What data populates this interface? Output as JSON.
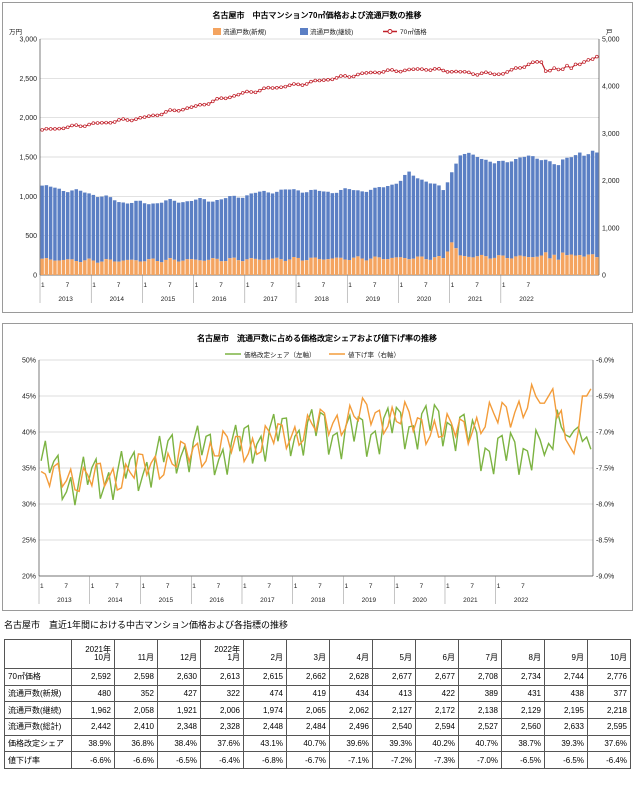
{
  "chart_data": [
    {
      "type": "bar+line",
      "title": "名古屋市　中古マンション70㎡価格および流通戸数の推移",
      "left_unit": "万円",
      "right_unit": "戸",
      "left_ticks": [
        "0",
        "500",
        "1,000",
        "1,500",
        "2,000",
        "2,500",
        "3,000"
      ],
      "right_ticks": [
        "0",
        "1,000",
        "2,000",
        "3,000",
        "4,000",
        "5,000"
      ],
      "legend": [
        "流通戸数(新規)",
        "流通戸数(継続)",
        "70㎡価格"
      ],
      "colors": {
        "new": "#f4a460",
        "continuing": "#5b7fc4",
        "price": "#c0202a"
      },
      "years": [
        "2013",
        "2014",
        "2015",
        "2016",
        "2017",
        "2018",
        "2019",
        "2020",
        "2021",
        "2022"
      ],
      "month_labels": [
        "1",
        "7"
      ],
      "months": 118,
      "price_anchors": [
        [
          0,
          1840
        ],
        [
          6,
          1880
        ],
        [
          12,
          1920
        ],
        [
          18,
          1960
        ],
        [
          24,
          2000
        ],
        [
          30,
          2080
        ],
        [
          36,
          2140
        ],
        [
          42,
          2240
        ],
        [
          48,
          2320
        ],
        [
          54,
          2380
        ],
        [
          60,
          2420
        ],
        [
          66,
          2480
        ],
        [
          72,
          2530
        ],
        [
          78,
          2580
        ],
        [
          84,
          2600
        ],
        [
          90,
          2620
        ],
        [
          96,
          2590
        ],
        [
          102,
          2560
        ],
        [
          108,
          2560
        ],
        [
          114,
          2680
        ],
        [
          120,
          2740
        ],
        [
          126,
          2790
        ],
        [
          130,
          2776
        ]
      ],
      "total_anchors": [
        [
          0,
          1880
        ],
        [
          6,
          1800
        ],
        [
          12,
          1720
        ],
        [
          18,
          1560
        ],
        [
          24,
          1520
        ],
        [
          30,
          1560
        ],
        [
          36,
          1580
        ],
        [
          42,
          1600
        ],
        [
          48,
          1700
        ],
        [
          54,
          1780
        ],
        [
          60,
          1800
        ],
        [
          66,
          1760
        ],
        [
          72,
          1800
        ],
        [
          78,
          1800
        ],
        [
          84,
          2000
        ],
        [
          86,
          2150
        ],
        [
          90,
          2000
        ],
        [
          94,
          1800
        ],
        [
          96,
          2200
        ],
        [
          98,
          2540
        ],
        [
          102,
          2540
        ],
        [
          106,
          2350
        ],
        [
          110,
          2450
        ],
        [
          114,
          2500
        ],
        [
          118,
          2480
        ],
        [
          122,
          2550
        ],
        [
          126,
          2620
        ],
        [
          129,
          2640
        ],
        [
          130,
          2595
        ]
      ],
      "new_anchors": [
        [
          0,
          330
        ],
        [
          12,
          300
        ],
        [
          24,
          310
        ],
        [
          36,
          320
        ],
        [
          48,
          330
        ],
        [
          60,
          340
        ],
        [
          72,
          350
        ],
        [
          84,
          360
        ],
        [
          94,
          360
        ],
        [
          96,
          700
        ],
        [
          98,
          400
        ],
        [
          108,
          380
        ],
        [
          120,
          400
        ],
        [
          130,
          377
        ]
      ]
    },
    {
      "type": "line",
      "title": "名古屋市　流通戸数に占める価格改定シェアおよび値下げ率の推移",
      "left_ticks": [
        "20%",
        "25%",
        "30%",
        "35%",
        "40%",
        "45%",
        "50%"
      ],
      "right_ticks": [
        "-9.0%",
        "-8.5%",
        "-8.0%",
        "-7.5%",
        "-7.0%",
        "-6.5%",
        "-6.0%"
      ],
      "series": [
        {
          "name": "価格改定シェア（左軸）",
          "color": "#7cb342"
        },
        {
          "name": "値下げ率（右軸）",
          "color": "#f39c3a"
        }
      ],
      "share_anchors": [
        [
          0,
          36
        ],
        [
          6,
          33
        ],
        [
          12,
          33.5
        ],
        [
          18,
          34
        ],
        [
          24,
          35
        ],
        [
          30,
          37
        ],
        [
          36,
          38
        ],
        [
          42,
          37
        ],
        [
          48,
          38.5
        ],
        [
          54,
          39.5
        ],
        [
          60,
          40
        ],
        [
          66,
          40.5
        ],
        [
          72,
          39.5
        ],
        [
          78,
          40
        ],
        [
          84,
          41
        ],
        [
          90,
          41
        ],
        [
          96,
          41.5
        ],
        [
          100,
          40
        ],
        [
          104,
          38
        ],
        [
          110,
          37
        ],
        [
          116,
          38
        ],
        [
          122,
          40
        ],
        [
          126,
          39.5
        ],
        [
          130,
          37.6
        ]
      ],
      "cut_anchors": [
        [
          0,
          -7.7
        ],
        [
          6,
          -7.6
        ],
        [
          12,
          -7.65
        ],
        [
          18,
          -7.6
        ],
        [
          24,
          -7.5
        ],
        [
          30,
          -7.4
        ],
        [
          36,
          -7.3
        ],
        [
          42,
          -7.2
        ],
        [
          48,
          -7.2
        ],
        [
          54,
          -7.1
        ],
        [
          60,
          -7.0
        ],
        [
          66,
          -6.9
        ],
        [
          72,
          -6.8
        ],
        [
          78,
          -6.75
        ],
        [
          84,
          -6.8
        ],
        [
          90,
          -6.9
        ],
        [
          96,
          -7.0
        ],
        [
          102,
          -6.9
        ],
        [
          108,
          -6.8
        ],
        [
          114,
          -6.6
        ],
        [
          120,
          -6.5
        ],
        [
          124,
          -6.8
        ],
        [
          127,
          -6.5
        ],
        [
          130,
          -6.4
        ]
      ],
      "years": [
        "2013",
        "2014",
        "2015",
        "2016",
        "2017",
        "2018",
        "2019",
        "2020",
        "2021",
        "2022"
      ]
    }
  ],
  "table": {
    "title": "名古屋市　直近1年間における中古マンション価格および各指標の推移",
    "header_top": [
      "2021年",
      "",
      "",
      "2022年",
      "",
      "",
      "",
      "",
      "",
      "",
      "",
      "",
      ""
    ],
    "header_month": [
      "10月",
      "11月",
      "12月",
      "1月",
      "2月",
      "3月",
      "4月",
      "5月",
      "6月",
      "7月",
      "8月",
      "9月",
      "10月"
    ],
    "rows": [
      {
        "label": "70㎡価格",
        "values": [
          "2,592",
          "2,598",
          "2,630",
          "2,613",
          "2,615",
          "2,662",
          "2,628",
          "2,677",
          "2,677",
          "2,708",
          "2,734",
          "2,744",
          "2,776"
        ]
      },
      {
        "label": "流通戸数(新規)",
        "values": [
          "480",
          "352",
          "427",
          "322",
          "474",
          "419",
          "434",
          "413",
          "422",
          "389",
          "431",
          "438",
          "377"
        ]
      },
      {
        "label": "流通戸数(継続)",
        "values": [
          "1,962",
          "2,058",
          "1,921",
          "2,006",
          "1,974",
          "2,065",
          "2,062",
          "2,127",
          "2,172",
          "2,138",
          "2,129",
          "2,195",
          "2,218"
        ]
      },
      {
        "label": "流通戸数(総計)",
        "values": [
          "2,442",
          "2,410",
          "2,348",
          "2,328",
          "2,448",
          "2,484",
          "2,496",
          "2,540",
          "2,594",
          "2,527",
          "2,560",
          "2,633",
          "2,595"
        ]
      },
      {
        "label": "価格改定シェア",
        "values": [
          "38.9%",
          "36.8%",
          "38.4%",
          "37.6%",
          "43.1%",
          "40.7%",
          "39.6%",
          "39.3%",
          "40.2%",
          "40.7%",
          "38.7%",
          "39.3%",
          "37.6%"
        ]
      },
      {
        "label": "値下げ率",
        "values": [
          "-6.6%",
          "-6.6%",
          "-6.5%",
          "-6.4%",
          "-6.8%",
          "-6.7%",
          "-7.1%",
          "-7.2%",
          "-7.3%",
          "-7.0%",
          "-6.5%",
          "-6.5%",
          "-6.4%"
        ]
      }
    ]
  }
}
